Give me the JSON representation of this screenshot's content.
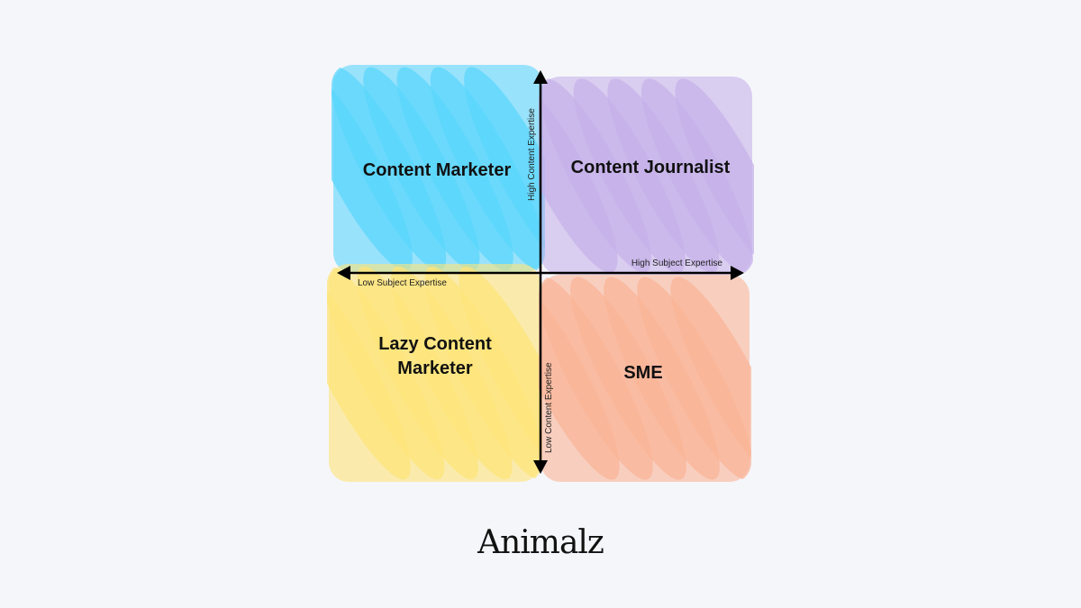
{
  "quadrants": {
    "top_left": {
      "label": "Content Marketer",
      "color": "#5bd5fc"
    },
    "top_right": {
      "label": "Content Journalist",
      "color": "#c6b2ea"
    },
    "bottom_left": {
      "label": "Lazy Content Marketer",
      "color": "#fde47a"
    },
    "bottom_right": {
      "label": "SME",
      "color": "#fab497"
    }
  },
  "axes": {
    "y_high": "High Content Expertise",
    "y_low": "Low Content Expertise",
    "x_high": "High Subject Expertise",
    "x_low": "Low Subject Expertise"
  },
  "logo": "Animalz"
}
